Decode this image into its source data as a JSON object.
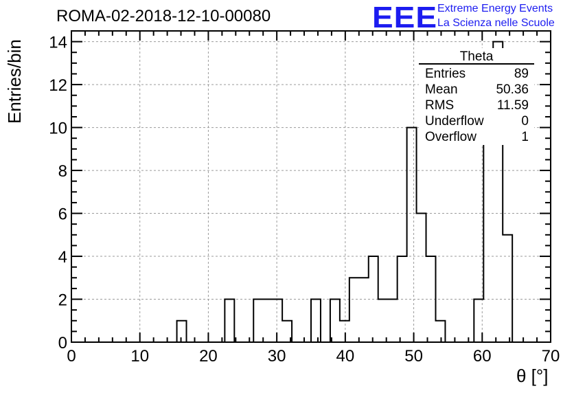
{
  "run_title": "ROMA-02-2018-12-10-00080",
  "logo": {
    "mark": "EEE",
    "line1": "Extreme Energy Events",
    "line2": "La Scienza nelle Scuole",
    "color": "#1c1cf0"
  },
  "stats_box": {
    "title": "Theta",
    "rows": [
      {
        "label": "Entries",
        "value": "89"
      },
      {
        "label": "Mean",
        "value": "50.36"
      },
      {
        "label": "RMS",
        "value": "11.59"
      },
      {
        "label": "Underflow",
        "value": "0"
      },
      {
        "label": "Overflow",
        "value": "1"
      }
    ]
  },
  "chart_data": {
    "type": "bar",
    "subtype": "step-histogram",
    "title": "ROMA-02-2018-12-10-00080",
    "xlabel": "θ [°]",
    "ylabel": "Entries/bin",
    "xlim": [
      0,
      70
    ],
    "ylim": [
      0,
      14.5
    ],
    "bin_width": 1.4,
    "xticks": [
      0,
      10,
      20,
      30,
      40,
      50,
      60,
      70
    ],
    "yticks": [
      0,
      2,
      4,
      6,
      8,
      10,
      12,
      14
    ],
    "grid": true,
    "bins": [
      {
        "x": 15.4,
        "count": 1
      },
      {
        "x": 22.4,
        "count": 2
      },
      {
        "x": 26.6,
        "count": 2
      },
      {
        "x": 28.0,
        "count": 2
      },
      {
        "x": 29.4,
        "count": 2
      },
      {
        "x": 30.8,
        "count": 1
      },
      {
        "x": 35.0,
        "count": 2
      },
      {
        "x": 37.8,
        "count": 2
      },
      {
        "x": 39.2,
        "count": 1
      },
      {
        "x": 40.6,
        "count": 3
      },
      {
        "x": 42.0,
        "count": 3
      },
      {
        "x": 43.4,
        "count": 4
      },
      {
        "x": 44.8,
        "count": 2
      },
      {
        "x": 46.2,
        "count": 2
      },
      {
        "x": 47.6,
        "count": 4
      },
      {
        "x": 49.0,
        "count": 10
      },
      {
        "x": 50.4,
        "count": 6
      },
      {
        "x": 51.8,
        "count": 4
      },
      {
        "x": 53.2,
        "count": 1
      },
      {
        "x": 58.8,
        "count": 2
      },
      {
        "x": 60.2,
        "count": 13
      },
      {
        "x": 61.6,
        "count": 14
      },
      {
        "x": 63.0,
        "count": 5
      }
    ]
  }
}
